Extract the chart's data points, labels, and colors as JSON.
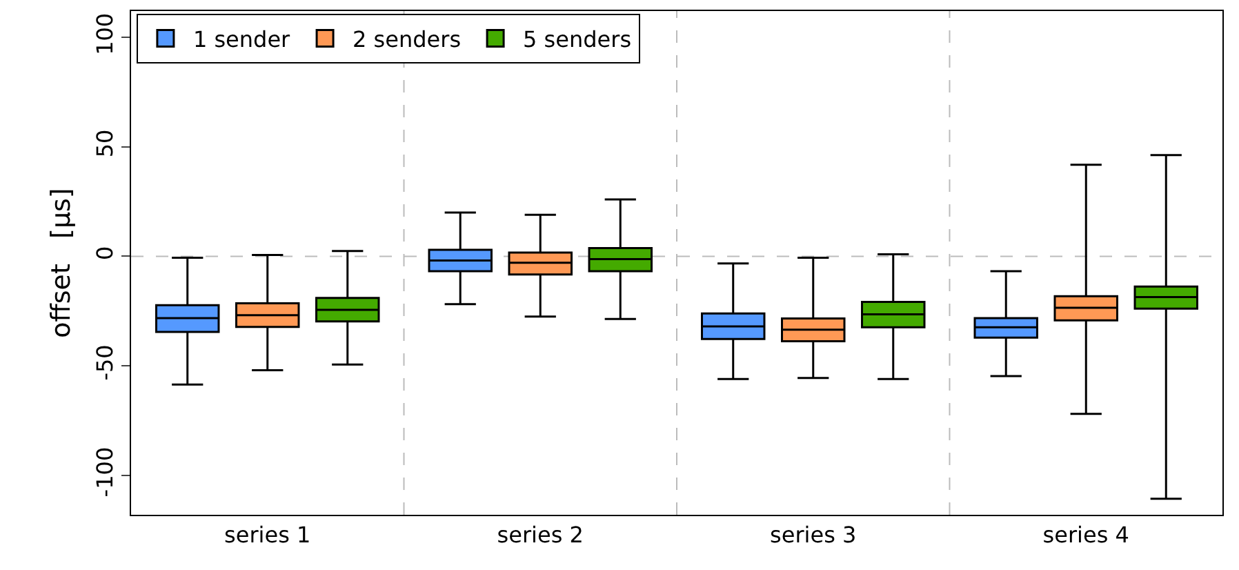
{
  "chart_data": {
    "type": "box",
    "ylabel": "offset   [µs]",
    "categories": [
      "series 1",
      "series 2",
      "series 3",
      "series 4"
    ],
    "ylim": [
      -118,
      112
    ],
    "yticks": [
      -100,
      -50,
      0,
      50,
      100
    ],
    "grid": "x",
    "legend": "top left",
    "ref_lines": [
      {
        "axis": "y",
        "value": 0,
        "color": "#bbbbbb",
        "line_style": "dashed"
      }
    ],
    "series": [
      {
        "name": "1 sender",
        "color": "#5599ff",
        "boxes": [
          {
            "low": -58.5,
            "q1": -34.5,
            "median": -28.2,
            "q3": -22.3,
            "high": -0.6
          },
          {
            "low": -21.8,
            "q1": -6.8,
            "median": -1.9,
            "q3": 3,
            "high": 20
          },
          {
            "low": -56,
            "q1": -37.7,
            "median": -32,
            "q3": -26.1,
            "high": -3.2
          },
          {
            "low": -54.7,
            "q1": -37.1,
            "median": -32.4,
            "q3": -28.2,
            "high": -6.8
          }
        ]
      },
      {
        "name": "2 senders",
        "color": "#ff9955",
        "boxes": [
          {
            "low": -52,
            "q1": -32.2,
            "median": -26.9,
            "q3": -21.4,
            "high": 0.6
          },
          {
            "low": -27.5,
            "q1": -8.3,
            "median": -2.9,
            "q3": 1.7,
            "high": 19
          },
          {
            "low": -55.5,
            "q1": -38.8,
            "median": -33.5,
            "q3": -28.4,
            "high": -0.6
          },
          {
            "low": -71.9,
            "q1": -29.2,
            "median": -23.5,
            "q3": -18.2,
            "high": 41.8
          }
        ]
      },
      {
        "name": "5 senders",
        "color": "#44aa00",
        "boxes": [
          {
            "low": -49.4,
            "q1": -29.7,
            "median": -24.4,
            "q3": -19,
            "high": 2.4
          },
          {
            "low": -28.6,
            "q1": -6.8,
            "median": -1.3,
            "q3": 3.8,
            "high": 26
          },
          {
            "low": -56,
            "q1": -32.4,
            "median": -26.5,
            "q3": -20.8,
            "high": 0.9
          },
          {
            "low": -110.7,
            "q1": -23.9,
            "median": -18.6,
            "q3": -13.8,
            "high": 46.2
          }
        ]
      }
    ]
  }
}
